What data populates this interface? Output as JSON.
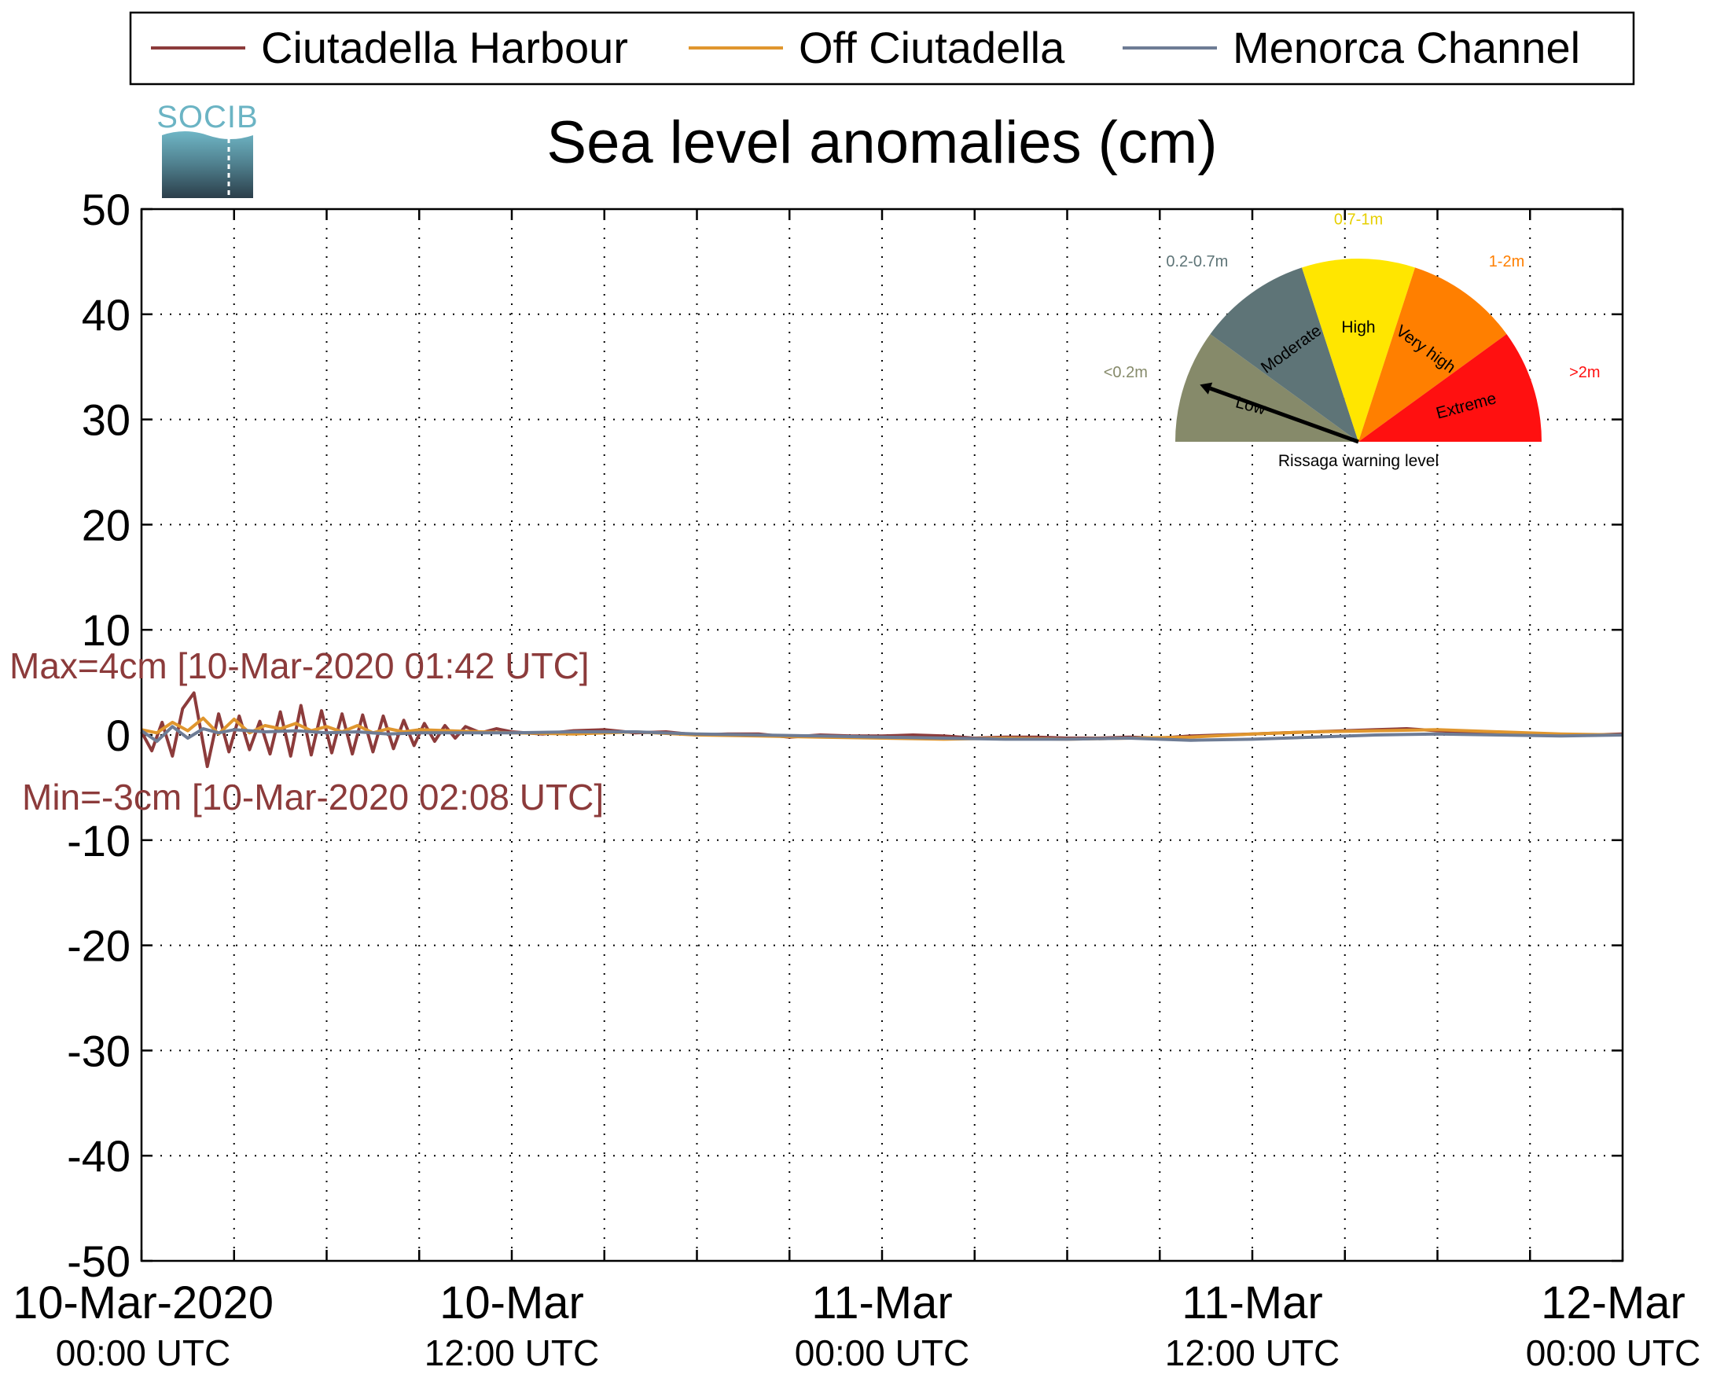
{
  "chart_data": {
    "type": "line",
    "title": "Sea level anomalies (cm)",
    "xlabel": "",
    "ylabel": "",
    "ylim": [
      -50,
      50
    ],
    "xlim": [
      "2020-03-10T00:00",
      "2020-03-12T00:00"
    ],
    "grid": true,
    "legend_position": "top",
    "yticks": [
      "50",
      "40",
      "30",
      "20",
      "10",
      "0",
      "-10",
      "-20",
      "-30",
      "-40",
      "-50"
    ],
    "xtick_labels": [
      {
        "x": "2020-03-10T00:00",
        "line1": "10-Mar-2020",
        "line2": "00:00 UTC"
      },
      {
        "x": "2020-03-10T12:00",
        "line1": "10-Mar",
        "line2": "12:00 UTC"
      },
      {
        "x": "2020-03-11T00:00",
        "line1": "11-Mar",
        "line2": "00:00 UTC"
      },
      {
        "x": "2020-03-11T12:00",
        "line1": "11-Mar",
        "line2": "12:00 UTC"
      },
      {
        "x": "2020-03-12T00:00",
        "line1": "12-Mar",
        "line2": "00:00 UTC"
      }
    ],
    "minor_xticks": [
      "2020-03-10T03:00",
      "2020-03-10T06:00",
      "2020-03-10T09:00",
      "2020-03-10T15:00",
      "2020-03-10T18:00",
      "2020-03-10T21:00",
      "2020-03-11T03:00",
      "2020-03-11T06:00",
      "2020-03-11T09:00",
      "2020-03-11T15:00",
      "2020-03-11T18:00",
      "2020-03-11T21:00"
    ],
    "series": [
      {
        "name": "Ciutadella Harbour",
        "color": "#8c3b3b",
        "x": [
          "2020-03-10T00:00",
          "2020-03-10T00:20",
          "2020-03-10T00:40",
          "2020-03-10T01:00",
          "2020-03-10T01:20",
          "2020-03-10T01:42",
          "2020-03-10T02:08",
          "2020-03-10T02:30",
          "2020-03-10T02:50",
          "2020-03-10T03:10",
          "2020-03-10T03:30",
          "2020-03-10T03:50",
          "2020-03-10T04:10",
          "2020-03-10T04:30",
          "2020-03-10T04:50",
          "2020-03-10T05:10",
          "2020-03-10T05:30",
          "2020-03-10T05:50",
          "2020-03-10T06:10",
          "2020-03-10T06:30",
          "2020-03-10T06:50",
          "2020-03-10T07:10",
          "2020-03-10T07:30",
          "2020-03-10T07:50",
          "2020-03-10T08:10",
          "2020-03-10T08:30",
          "2020-03-10T08:50",
          "2020-03-10T09:10",
          "2020-03-10T09:30",
          "2020-03-10T09:50",
          "2020-03-10T10:10",
          "2020-03-10T10:30",
          "2020-03-10T11:00",
          "2020-03-10T11:30",
          "2020-03-10T12:00",
          "2020-03-10T13:00",
          "2020-03-10T14:00",
          "2020-03-10T15:00",
          "2020-03-10T16:00",
          "2020-03-10T17:00",
          "2020-03-10T18:00",
          "2020-03-10T19:00",
          "2020-03-10T20:00",
          "2020-03-10T21:00",
          "2020-03-10T22:00",
          "2020-03-10T23:00",
          "2020-03-11T00:00",
          "2020-03-11T01:00",
          "2020-03-11T02:00",
          "2020-03-11T03:00",
          "2020-03-11T04:00",
          "2020-03-11T05:00",
          "2020-03-11T06:00",
          "2020-03-11T07:00",
          "2020-03-11T08:00",
          "2020-03-11T09:00",
          "2020-03-11T10:00",
          "2020-03-11T11:00",
          "2020-03-11T12:00",
          "2020-03-11T13:00",
          "2020-03-11T14:00",
          "2020-03-11T15:00",
          "2020-03-11T16:00",
          "2020-03-11T17:00",
          "2020-03-11T18:00",
          "2020-03-11T19:00",
          "2020-03-11T20:00",
          "2020-03-11T21:00",
          "2020-03-11T22:00",
          "2020-03-11T23:00",
          "2020-03-12T00:00"
        ],
        "y": [
          0.3,
          -1.5,
          1.2,
          -2.0,
          2.5,
          4.0,
          -3.0,
          2.0,
          -1.6,
          1.8,
          -1.4,
          1.3,
          -1.8,
          2.2,
          -2.0,
          2.8,
          -1.9,
          2.3,
          -1.7,
          2.0,
          -1.8,
          1.9,
          -1.6,
          1.8,
          -1.3,
          1.4,
          -1.0,
          1.1,
          -0.6,
          0.9,
          -0.3,
          0.8,
          0.2,
          0.6,
          0.3,
          0.1,
          0.4,
          0.5,
          0.2,
          0.3,
          0.0,
          0.1,
          0.1,
          -0.2,
          0.0,
          -0.1,
          -0.1,
          0.0,
          -0.1,
          -0.3,
          -0.2,
          -0.2,
          -0.3,
          -0.3,
          -0.2,
          -0.3,
          -0.1,
          0.0,
          0.1,
          0.2,
          0.3,
          0.4,
          0.5,
          0.6,
          0.4,
          0.3,
          0.2,
          0.1,
          0.0,
          0.0,
          0.1
        ]
      },
      {
        "name": "Off Ciutadella",
        "color": "#e0962e",
        "x": [
          "2020-03-10T00:00",
          "2020-03-10T00:30",
          "2020-03-10T01:00",
          "2020-03-10T01:30",
          "2020-03-10T02:00",
          "2020-03-10T02:30",
          "2020-03-10T03:00",
          "2020-03-10T03:30",
          "2020-03-10T04:00",
          "2020-03-10T04:30",
          "2020-03-10T05:00",
          "2020-03-10T05:30",
          "2020-03-10T06:00",
          "2020-03-10T06:30",
          "2020-03-10T07:00",
          "2020-03-10T07:30",
          "2020-03-10T08:00",
          "2020-03-10T08:30",
          "2020-03-10T09:00",
          "2020-03-10T10:00",
          "2020-03-10T11:00",
          "2020-03-10T12:00",
          "2020-03-10T14:00",
          "2020-03-10T16:00",
          "2020-03-10T18:00",
          "2020-03-10T20:00",
          "2020-03-10T22:00",
          "2020-03-11T00:00",
          "2020-03-11T02:00",
          "2020-03-11T04:00",
          "2020-03-11T06:00",
          "2020-03-11T08:00",
          "2020-03-11T10:00",
          "2020-03-11T12:00",
          "2020-03-11T14:00",
          "2020-03-11T16:00",
          "2020-03-11T18:00",
          "2020-03-11T20:00",
          "2020-03-11T22:00",
          "2020-03-12T00:00"
        ],
        "y": [
          0.5,
          0.2,
          1.2,
          0.4,
          1.6,
          0.1,
          1.5,
          0.2,
          0.9,
          0.6,
          1.1,
          0.4,
          0.8,
          0.3,
          0.9,
          0.2,
          0.6,
          0.3,
          0.5,
          0.4,
          0.3,
          0.2,
          0.1,
          0.3,
          0.0,
          -0.1,
          -0.2,
          -0.3,
          -0.4,
          -0.3,
          -0.4,
          -0.3,
          -0.2,
          0.1,
          0.3,
          0.4,
          0.5,
          0.3,
          0.1,
          0.0
        ]
      },
      {
        "name": "Menorca Channel",
        "color": "#6e7c95",
        "x": [
          "2020-03-10T00:00",
          "2020-03-10T00:30",
          "2020-03-10T01:00",
          "2020-03-10T01:30",
          "2020-03-10T02:00",
          "2020-03-10T02:30",
          "2020-03-10T03:00",
          "2020-03-10T04:00",
          "2020-03-10T05:00",
          "2020-03-10T06:00",
          "2020-03-10T07:00",
          "2020-03-10T08:00",
          "2020-03-10T09:00",
          "2020-03-10T10:00",
          "2020-03-10T12:00",
          "2020-03-10T14:00",
          "2020-03-10T16:00",
          "2020-03-10T18:00",
          "2020-03-10T20:00",
          "2020-03-10T22:00",
          "2020-03-11T00:00",
          "2020-03-11T02:00",
          "2020-03-11T04:00",
          "2020-03-11T06:00",
          "2020-03-11T08:00",
          "2020-03-11T10:00",
          "2020-03-11T12:00",
          "2020-03-11T14:00",
          "2020-03-11T16:00",
          "2020-03-11T18:00",
          "2020-03-11T20:00",
          "2020-03-11T22:00",
          "2020-03-12T00:00"
        ],
        "y": [
          0.4,
          -0.6,
          0.8,
          -0.3,
          0.6,
          0.2,
          0.5,
          0.3,
          0.4,
          0.2,
          0.3,
          0.1,
          0.2,
          0.2,
          0.2,
          0.3,
          0.3,
          0.1,
          0.0,
          -0.1,
          -0.2,
          -0.3,
          -0.4,
          -0.4,
          -0.3,
          -0.5,
          -0.4,
          -0.2,
          0.0,
          0.1,
          0.0,
          -0.1,
          0.0
        ]
      }
    ],
    "annotations": [
      {
        "text": "Max=4cm [10-Mar-2020 01:42 UTC]",
        "color": "#8c3b3b"
      },
      {
        "text": "Min=-3cm [10-Mar-2020 02:08 UTC]",
        "color": "#8c3b3b"
      }
    ]
  },
  "logo": {
    "text": "SOCIB"
  },
  "gauge": {
    "title": "Rissaga warning level",
    "needle_level": "Low",
    "sectors": [
      {
        "name": "Low",
        "range": "<0.2m",
        "color": "#868a6a",
        "range_color": "#868a6a"
      },
      {
        "name": "Moderate",
        "range": "0.2-0.7m",
        "color": "#5e7477",
        "range_color": "#5e7477"
      },
      {
        "name": "High",
        "range": "0.7-1m",
        "color": "#ffe600",
        "range_color": "#e6cf00"
      },
      {
        "name": "Very high",
        "range": "1-2m",
        "color": "#ff7f00",
        "range_color": "#ff7f00"
      },
      {
        "name": "Extreme",
        "range": ">2m",
        "color": "#ff1010",
        "range_color": "#ff1010"
      }
    ]
  }
}
